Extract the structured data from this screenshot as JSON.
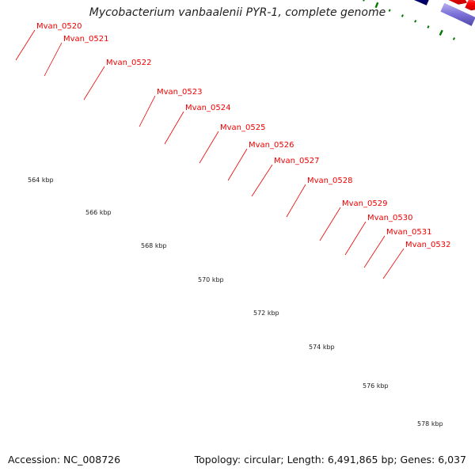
{
  "title": "Mycobacterium vanbaalenii PYR-1, complete genome",
  "footer": {
    "accession": "Accession: NC_008726",
    "topology": "Topology: circular; Length: 6,491,865 bp; Genes: 6,037"
  },
  "colors": {
    "gene_red": "#ff0000",
    "callout_red": "#ee0000",
    "tick_green": "#007700",
    "backbone_gray": "#9a9a9a",
    "feature_gray": "#c4c4c4",
    "feature_navy": "#000080",
    "feature_slate": "#5060a8",
    "feature_steel": "#4e86c0",
    "feature_cyan": "#00f0f0",
    "feature_lavender": "#7a70d8"
  },
  "scale": {
    "unit": "kbp",
    "labels": [
      "564 kbp",
      "566 kbp",
      "568 kbp",
      "570 kbp",
      "572 kbp",
      "574 kbp",
      "576 kbp",
      "578 kbp"
    ]
  },
  "genes": [
    {
      "label": "Mvan_0520"
    },
    {
      "label": "Mvan_0521"
    },
    {
      "label": "Mvan_0522"
    },
    {
      "label": "Mvan_0523"
    },
    {
      "label": "Mvan_0524"
    },
    {
      "label": "Mvan_0525"
    },
    {
      "label": "Mvan_0526"
    },
    {
      "label": "Mvan_0527"
    },
    {
      "label": "Mvan_0528"
    },
    {
      "label": "Mvan_0529"
    },
    {
      "label": "Mvan_0530"
    },
    {
      "label": "Mvan_0531"
    },
    {
      "label": "Mvan_0532"
    }
  ]
}
